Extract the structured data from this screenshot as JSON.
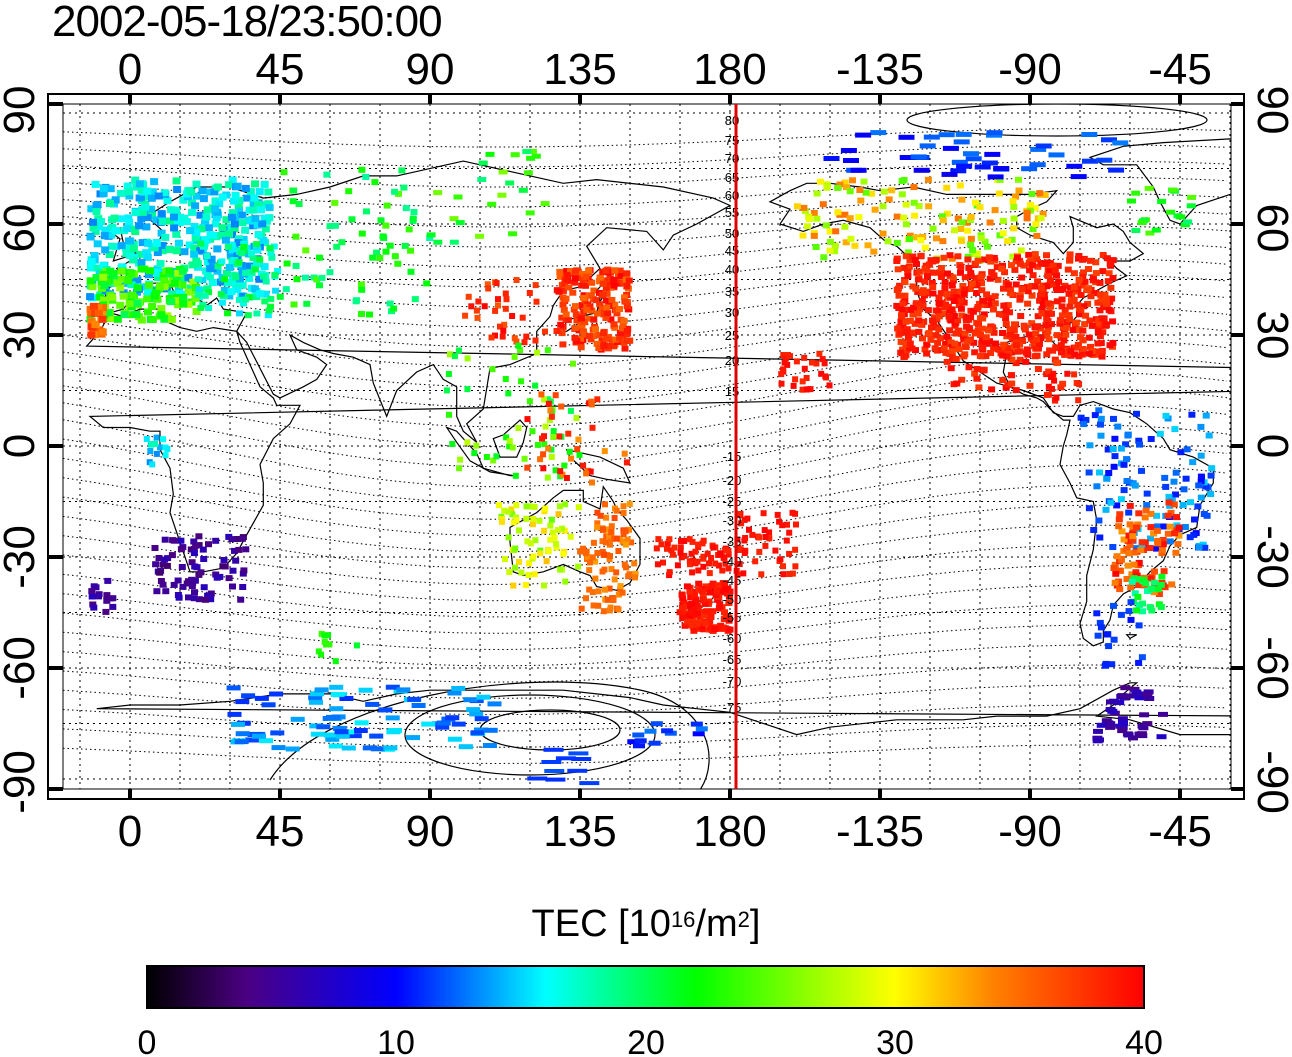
{
  "timestamp": "2002-05-18/23:50:00",
  "map": {
    "top_lon_labels": [
      "0",
      "45",
      "90",
      "135",
      "180",
      "-135",
      "-90",
      "-45"
    ],
    "bottom_lon_labels": [
      "0",
      "45",
      "90",
      "135",
      "180",
      "-135",
      "-90",
      "-45"
    ],
    "left_lat_labels": [
      "90",
      "60",
      "30",
      "0",
      "-30",
      "-60",
      "-90"
    ],
    "right_lat_labels": [
      "90",
      "60",
      "30",
      "0",
      "-30",
      "-60",
      "-90"
    ],
    "contour_labels": [
      "80",
      "75",
      "70",
      "65",
      "60",
      "55",
      "50",
      "45",
      "40",
      "35",
      "30",
      "25",
      "20",
      "15",
      "-15",
      "-20",
      "-25",
      "-30",
      "-35",
      "-40",
      "-45",
      "-50",
      "-55",
      "-60",
      "-65",
      "-70",
      "-75"
    ],
    "meridian_line_color": "#e00000"
  },
  "colorbar": {
    "title_main": "TEC  [10",
    "title_exp1": "16",
    "title_mid": "/m",
    "title_exp2": "2",
    "title_end": "]",
    "tick_labels": [
      "0",
      "10",
      "20",
      "30",
      "40"
    ],
    "colors": [
      "#000000",
      "#4b0082",
      "#0000ff",
      "#00ffff",
      "#00ff00",
      "#ffff00",
      "#ff8000",
      "#ff0000"
    ]
  }
}
